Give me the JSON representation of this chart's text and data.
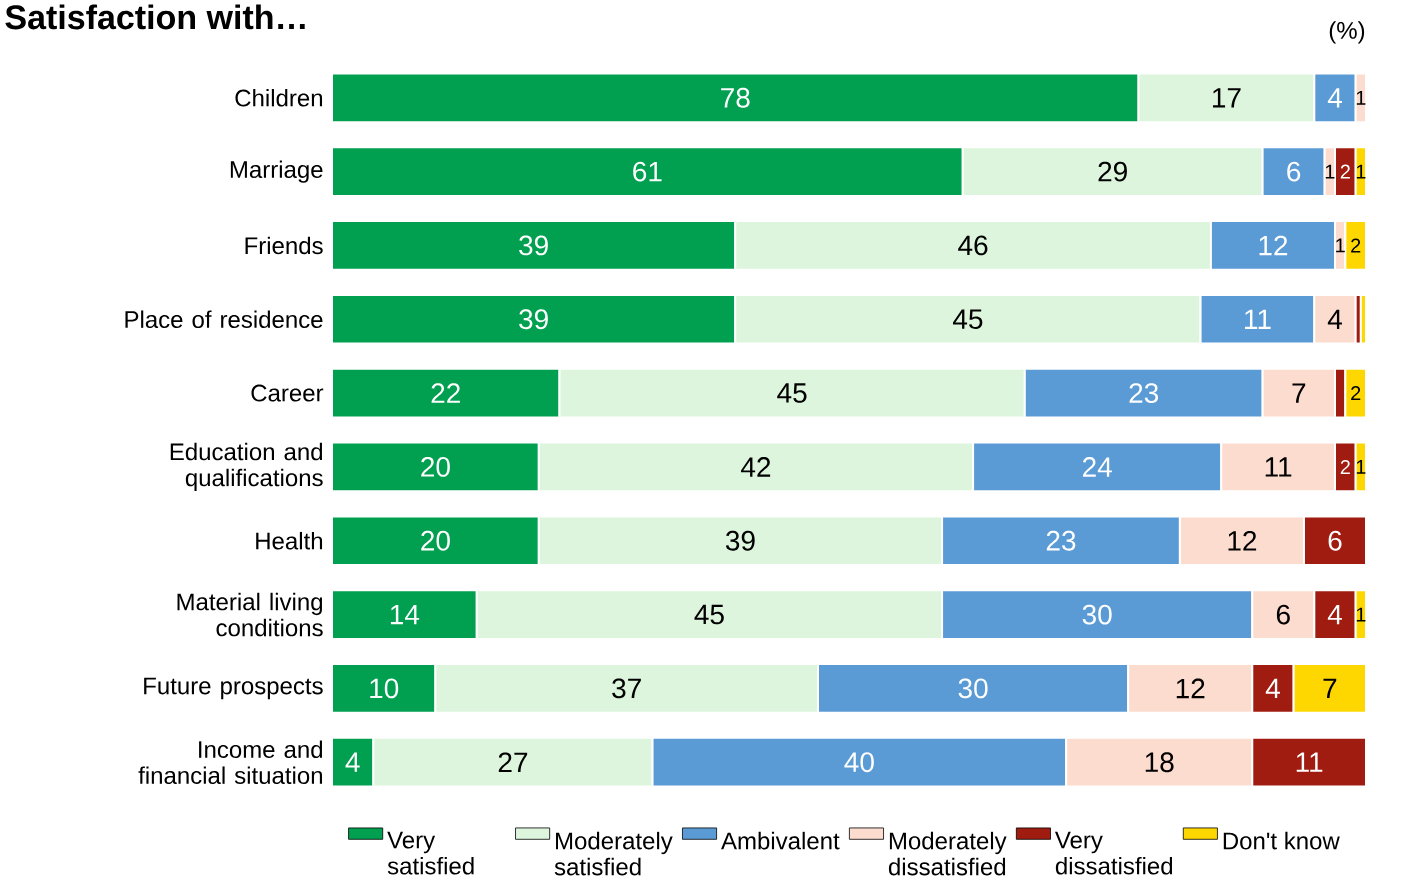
{
  "chart_data": {
    "type": "bar",
    "orientation": "horizontal",
    "stacked": true,
    "title": "Satisfaction with…",
    "annotations": [
      "(%)"
    ],
    "legend": "bottom",
    "categories": [
      "Children",
      "Marriage",
      "Friends",
      "Place of residence",
      "Career",
      "Education and qualifications",
      "Health",
      "Material living conditions",
      "Future prospects",
      "Income and financial situation"
    ],
    "series": [
      {
        "name": "Very satisfied",
        "color": "#00a050",
        "values": [
          78,
          61,
          39,
          39,
          22,
          20,
          20,
          14,
          10,
          4
        ],
        "value_labels": [
          "78",
          "61",
          "39",
          "39",
          "22",
          "20",
          "20",
          "14",
          "10",
          "4"
        ]
      },
      {
        "name": "Moderately satisfied",
        "color": "#dcf5dc",
        "values": [
          17,
          29,
          46,
          45,
          45,
          42,
          39,
          45,
          37,
          27
        ],
        "value_labels": [
          "17",
          "29",
          "46",
          "45",
          "45",
          "42",
          "39",
          "45",
          "37",
          "27"
        ]
      },
      {
        "name": "Ambivalent",
        "color": "#5b9bd5",
        "values": [
          4,
          6,
          12,
          11,
          23,
          24,
          23,
          30,
          30,
          40
        ],
        "value_labels": [
          "4",
          "6",
          "12",
          "11",
          "23",
          "24",
          "23",
          "30",
          "30",
          "40"
        ]
      },
      {
        "name": "Moderately dissatisfied",
        "color": "#fcdccf",
        "values": [
          1,
          1,
          1,
          4,
          7,
          11,
          12,
          6,
          12,
          18
        ],
        "value_labels": [
          "1",
          "1",
          "1",
          "4",
          "7",
          "11",
          "12",
          "6",
          "12",
          "18"
        ]
      },
      {
        "name": "Very dissatisfied",
        "color": "#a01c10",
        "values": [
          null,
          2,
          null,
          0.5,
          1,
          2,
          6,
          4,
          4,
          11
        ],
        "value_labels": [
          null,
          "2",
          null,
          null,
          null,
          "2",
          "6",
          "4",
          "4",
          "11"
        ]
      },
      {
        "name": "Don't know",
        "color": "#ffd700",
        "values": [
          null,
          1,
          2,
          0.5,
          2,
          1,
          null,
          1,
          7,
          null
        ],
        "value_labels": [
          null,
          "1",
          "2",
          null,
          "2",
          "1",
          null,
          "1",
          "7",
          null
        ]
      }
    ]
  }
}
